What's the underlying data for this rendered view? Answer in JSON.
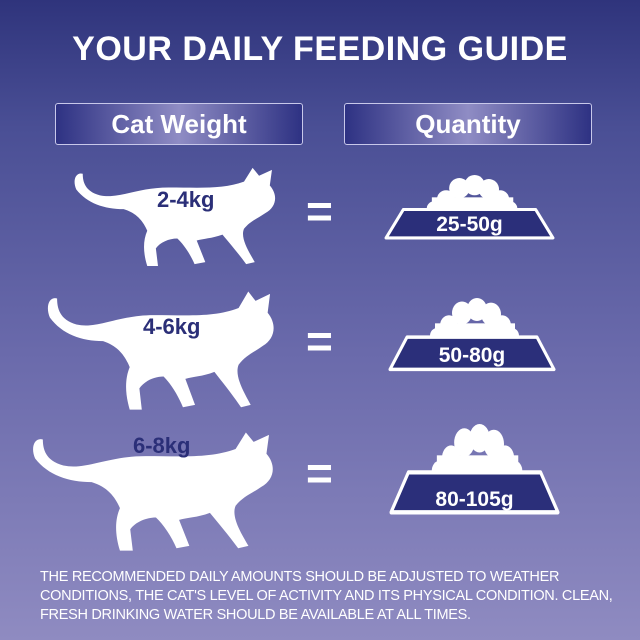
{
  "title": "YOUR DAILY FEEDING GUIDE",
  "headers": {
    "weight": "Cat Weight",
    "quantity": "Quantity"
  },
  "rows": [
    {
      "weight": "2-4kg",
      "equals": "=",
      "quantity": "25-50g"
    },
    {
      "weight": "4-6kg",
      "equals": "=",
      "quantity": "50-80g"
    },
    {
      "weight": "6-8kg",
      "equals": "=",
      "quantity": "80-105g"
    }
  ],
  "note": "THE RECOMMENDED DAILY AMOUNTS SHOULD BE ADJUSTED TO WEATHER CONDITIONS, THE CAT'S LEVEL OF ACTIVITY AND ITS PHYSICAL CONDITION. CLEAN, FRESH DRINKING WATER SHOULD BE AVAILABLE AT ALL TIMES.",
  "colors": {
    "bowl": "#2b2f7a",
    "label": "#2b2f78",
    "bg_top": "#2f347c",
    "bg_bottom": "#8f8bc1"
  }
}
